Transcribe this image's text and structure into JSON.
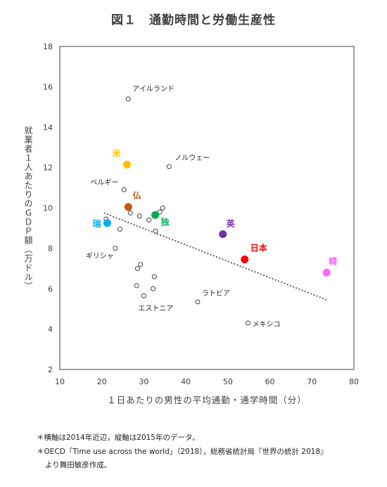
{
  "title": "図１　通勤時間と労働生産性",
  "notes": [
    "＊横軸は2014年近辺，縦軸は2015年のデータ。",
    "＊OECD「Time use across the world」（2018），総務省統計局『世界の統計 2018』",
    "より舞田敏彦作成。"
  ],
  "chart_data": {
    "type": "scatter",
    "xlabel": "１日あたりの男性の平均通勤・通学時間（分）",
    "ylabel": "就業者１人あたりのＧＤＰ額（万ドル）",
    "xlim": [
      10,
      80
    ],
    "ylim": [
      2,
      18
    ],
    "xticks": [
      10,
      20,
      30,
      40,
      50,
      60,
      70,
      80
    ],
    "yticks": [
      2,
      4,
      6,
      8,
      10,
      12,
      14,
      16,
      18
    ],
    "grid": false,
    "trendline": {
      "style": "dotted",
      "x": [
        20.5,
        73.5
      ],
      "y": [
        9.75,
        5.45
      ]
    },
    "highlighted": [
      {
        "label": "米",
        "x": 26.0,
        "y": 12.15,
        "color": "#FFC000"
      },
      {
        "label": "仏",
        "x": 26.3,
        "y": 10.05,
        "color": "#C55A11"
      },
      {
        "label": "瑞",
        "x": 21.3,
        "y": 9.25,
        "color": "#00B0F0"
      },
      {
        "label": "独",
        "x": 32.7,
        "y": 9.65,
        "color": "#00B050"
      },
      {
        "label": "英",
        "x": 48.8,
        "y": 8.7,
        "color": "#7030A0"
      },
      {
        "label": "日本",
        "x": 54.0,
        "y": 7.45,
        "color": "#FF0000"
      },
      {
        "label": "韓",
        "x": 73.5,
        "y": 6.8,
        "color": "#FF66FF"
      }
    ],
    "others": [
      {
        "label": "アイルランド",
        "x": 26.3,
        "y": 15.4
      },
      {
        "label": "ノルウェー",
        "x": 36.0,
        "y": 12.05
      },
      {
        "label": "ベルギー",
        "x": 25.3,
        "y": 10.9
      },
      {
        "label": "",
        "x": 26.8,
        "y": 9.75
      },
      {
        "label": "",
        "x": 29.0,
        "y": 9.6
      },
      {
        "label": "",
        "x": 31.2,
        "y": 9.4
      },
      {
        "label": "",
        "x": 33.8,
        "y": 9.8
      },
      {
        "label": "",
        "x": 34.5,
        "y": 10.0
      },
      {
        "label": "",
        "x": 21.0,
        "y": 9.45
      },
      {
        "label": "",
        "x": 24.3,
        "y": 8.95
      },
      {
        "label": "",
        "x": 32.8,
        "y": 8.85
      },
      {
        "label": "ギリシャ",
        "x": 23.2,
        "y": 8.0
      },
      {
        "label": "",
        "x": 29.2,
        "y": 7.2
      },
      {
        "label": "",
        "x": 28.5,
        "y": 7.0
      },
      {
        "label": "",
        "x": 32.5,
        "y": 6.6
      },
      {
        "label": "",
        "x": 28.3,
        "y": 6.15
      },
      {
        "label": "",
        "x": 32.2,
        "y": 6.0
      },
      {
        "label": "エストニア",
        "x": 30.0,
        "y": 5.65
      },
      {
        "label": "ラトビア",
        "x": 42.8,
        "y": 5.35
      },
      {
        "label": "メキシコ",
        "x": 54.8,
        "y": 4.3
      }
    ]
  }
}
